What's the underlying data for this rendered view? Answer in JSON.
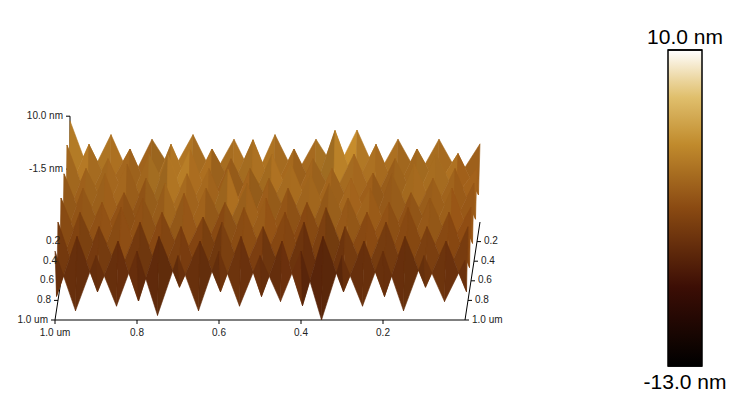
{
  "chart_data": {
    "type": "surface",
    "x": [
      1.0,
      0.95,
      0.9,
      0.85,
      0.8,
      0.75,
      0.7,
      0.65,
      0.6,
      0.55,
      0.5,
      0.45,
      0.4,
      0.35,
      0.3,
      0.25,
      0.2,
      0.15,
      0.1,
      0.05,
      0.0
    ],
    "y": [
      0,
      0.1,
      0.2,
      0.3,
      0.4,
      0.5,
      0.6,
      0.7,
      0.8,
      0.9,
      1.0
    ],
    "z": [
      [
        9,
        -3,
        6,
        -4,
        5,
        -2,
        6,
        -3,
        5,
        -4,
        6,
        -3,
        5,
        -2,
        7,
        -3,
        5,
        -3,
        5,
        -3,
        4
      ],
      [
        -4,
        6,
        -3,
        5,
        -5,
        6,
        -4,
        5,
        -3,
        7,
        -4,
        5,
        -4,
        9,
        -3,
        6,
        -4,
        5,
        -3,
        4,
        -5
      ],
      [
        8,
        -4,
        5,
        -5,
        6,
        -3,
        7,
        -5,
        5,
        -4,
        6,
        -5,
        5,
        -3,
        6,
        -4,
        5,
        -4,
        6,
        -3,
        3
      ],
      [
        -6,
        5,
        -4,
        6,
        -5,
        8,
        -4,
        5,
        -6,
        5,
        -3,
        6,
        -5,
        5,
        -4,
        4,
        -5,
        6,
        -4,
        5,
        -6
      ],
      [
        6,
        -5,
        6,
        -6,
        5,
        -4,
        6,
        -5,
        7,
        -6,
        5,
        -4,
        6,
        -5,
        5,
        -6,
        6,
        -4,
        5,
        -5,
        4
      ],
      [
        -7,
        5,
        -5,
        4,
        -6,
        6,
        -5,
        5,
        -4,
        6,
        -6,
        5,
        -5,
        6,
        -4,
        5,
        -6,
        4,
        -5,
        5,
        -7
      ],
      [
        5,
        -6,
        4,
        -7,
        5,
        -5,
        6,
        -6,
        4,
        -5,
        5,
        -7,
        4,
        -6,
        5,
        -5,
        4,
        -6,
        5,
        -5,
        3
      ],
      [
        -8,
        4,
        -6,
        5,
        -7,
        4,
        -6,
        3,
        -7,
        5,
        -6,
        4,
        -8,
        5,
        -6,
        4,
        -7,
        5,
        -6,
        4,
        -8
      ],
      [
        4,
        -9,
        3,
        -7,
        4,
        -8,
        3,
        -9,
        4,
        -7,
        3,
        -8,
        4,
        -11,
        3,
        -7,
        4,
        -8,
        3,
        -7,
        3
      ],
      [
        -10,
        3,
        -9,
        2,
        -11,
        3,
        -8,
        2,
        -9,
        3,
        -10,
        2,
        -12,
        3,
        -9,
        2,
        -10,
        3,
        -8,
        2,
        -9
      ],
      [
        2,
        -11,
        1,
        -10,
        2,
        -12,
        1,
        -11,
        2,
        -10,
        1,
        -9,
        2,
        -13,
        1,
        -10,
        2,
        -11,
        1,
        -9,
        0
      ]
    ],
    "xlim": [
      1.0,
      0
    ],
    "ylim": [
      0,
      1.0
    ],
    "zlim": [
      -13,
      10
    ],
    "xticks": [
      {
        "value": 1.0,
        "label": "1.0 um"
      },
      0.8,
      0.6,
      0.4,
      0.2
    ],
    "yticks": [
      0.2,
      0.4,
      0.6,
      0.8,
      {
        "value": 1.0,
        "label": "1.0 um"
      }
    ],
    "zticks": [
      {
        "value": 10,
        "label": "10.0 nm"
      },
      {
        "value": -1.5,
        "label": "-1.5 nm"
      }
    ],
    "colorbar_lim": [
      -13,
      10
    ],
    "colorbar_ticks": [
      {
        "value": 10,
        "label": "10.0 nm"
      },
      {
        "value": -13,
        "label": "-13.0 nm"
      }
    ]
  }
}
